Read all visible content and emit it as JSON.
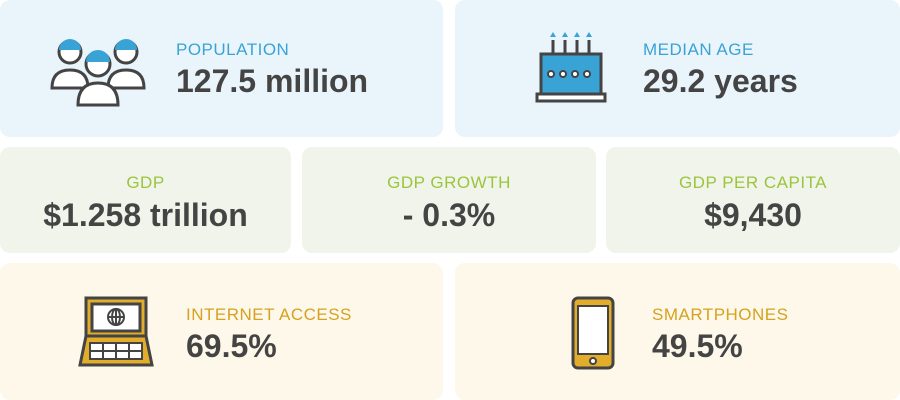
{
  "cards": [
    {
      "label": "POPULATION",
      "value": "127.5 million"
    },
    {
      "label": "MEDIAN AGE",
      "value": "29.2 years"
    },
    {
      "label": "GDP",
      "value": "$1.258 trillion"
    },
    {
      "label": "GDP GROWTH",
      "value": "- 0.3%"
    },
    {
      "label": "GDP PER CAPITA",
      "value": "$9,430"
    },
    {
      "label": "INTERNET ACCESS",
      "value": "69.5%"
    },
    {
      "label": "SMARTPHONES",
      "value": "49.5%"
    }
  ]
}
